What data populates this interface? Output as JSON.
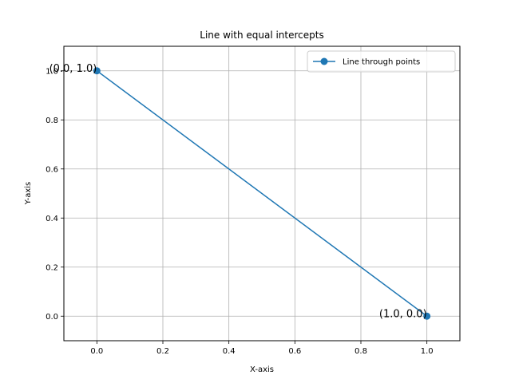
{
  "chart_data": {
    "type": "line",
    "title": "Line with equal intercepts",
    "xlabel": "X-axis",
    "ylabel": "Y-axis",
    "xlim": [
      -0.1,
      1.1
    ],
    "ylim": [
      -0.1,
      1.1
    ],
    "xticks": [
      0.0,
      0.2,
      0.4,
      0.6,
      0.8,
      1.0
    ],
    "yticks": [
      0.0,
      0.2,
      0.4,
      0.6,
      0.8,
      1.0
    ],
    "xtick_labels": [
      "0.0",
      "0.2",
      "0.4",
      "0.6",
      "0.8",
      "1.0"
    ],
    "ytick_labels": [
      "0.0",
      "0.2",
      "0.4",
      "0.6",
      "0.8",
      "1.0"
    ],
    "grid": true,
    "legend_position": "top-right",
    "series": [
      {
        "name": "Line through points",
        "color": "#1f77b4",
        "marker": "circle",
        "x": [
          0.0,
          1.0
        ],
        "y": [
          1.0,
          0.0
        ]
      }
    ],
    "annotations": [
      {
        "text": "(0.0, 1.0)",
        "x": 0.0,
        "y": 1.0,
        "align": "right"
      },
      {
        "text": "(1.0, 0.0)",
        "x": 1.0,
        "y": 0.0,
        "align": "right"
      }
    ]
  }
}
